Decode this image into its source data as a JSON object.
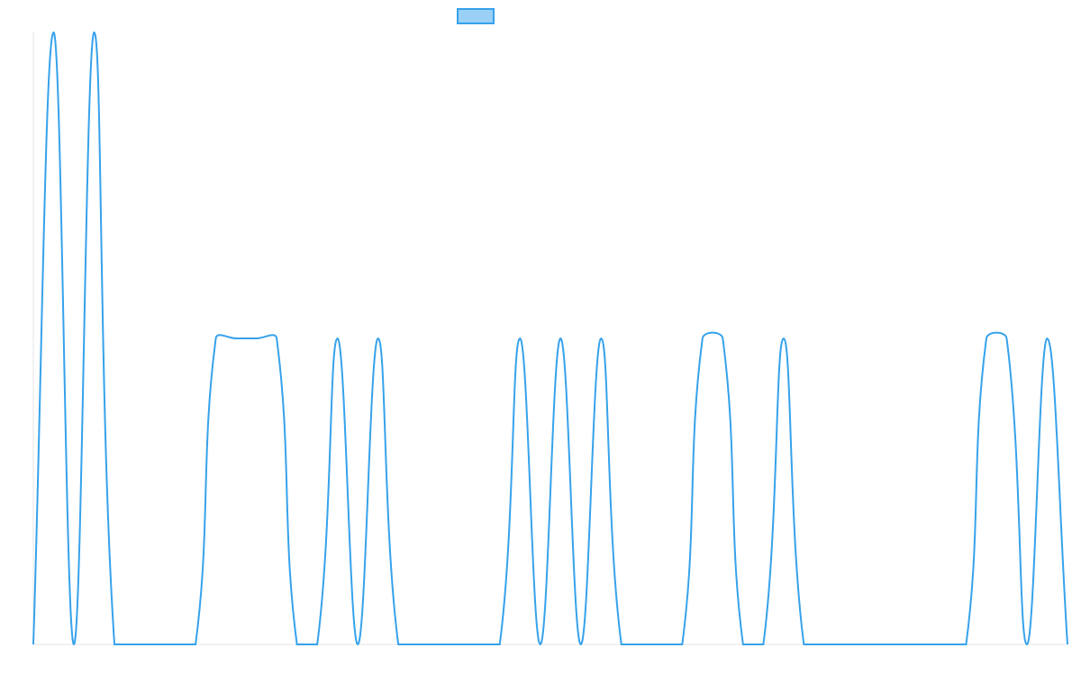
{
  "chart_data": {
    "type": "line",
    "categories": [
      null,
      null,
      null,
      null,
      null,
      null,
      null,
      null,
      null,
      null,
      null,
      null,
      null,
      null,
      null,
      null,
      null,
      null,
      null,
      null,
      null,
      null,
      null,
      null,
      null,
      null,
      null,
      null,
      null,
      null,
      null,
      null,
      null,
      null,
      null,
      null,
      null,
      null,
      null,
      null,
      null,
      null,
      null,
      null,
      null,
      null,
      null,
      null,
      null,
      null,
      null,
      null
    ],
    "series": [
      {
        "color": "#36a2eb",
        "values": [
          0,
          2,
          0,
          2,
          0,
          0,
          0,
          0,
          0,
          1,
          1,
          1,
          1,
          0,
          0,
          1,
          0,
          1,
          0,
          0,
          0,
          0,
          0,
          0,
          1,
          0,
          1,
          0,
          1,
          0,
          0,
          0,
          0,
          1,
          1,
          0,
          0,
          1,
          0,
          0,
          0,
          0,
          0,
          0,
          0,
          0,
          0,
          1,
          1,
          0,
          1,
          0
        ]
      }
    ],
    "ylim": [
      0,
      2
    ]
  }
}
